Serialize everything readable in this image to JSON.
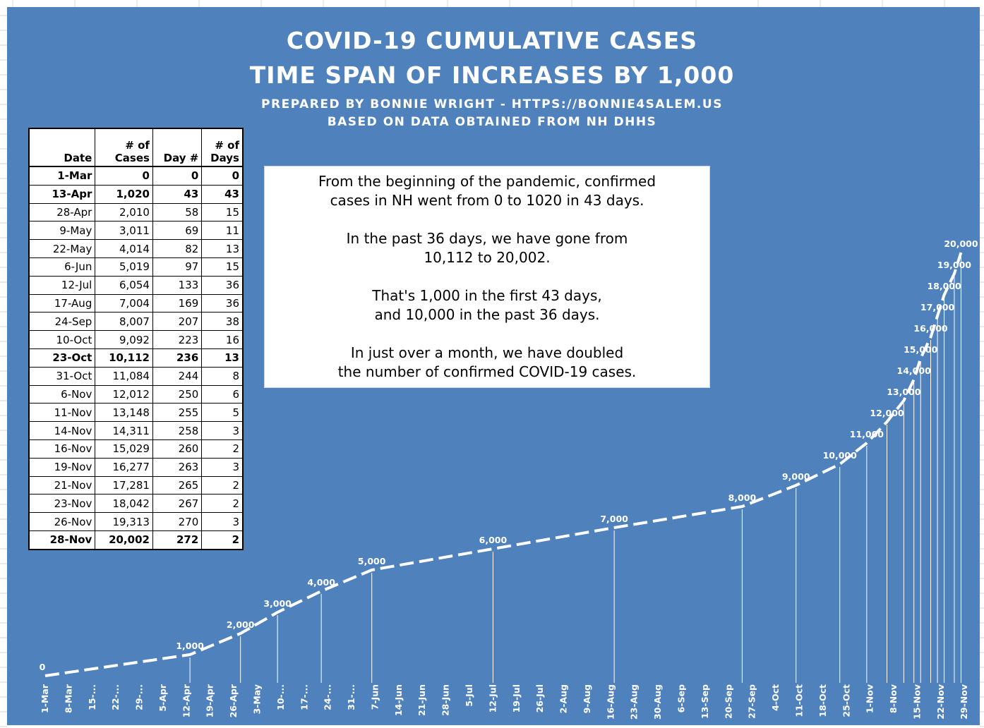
{
  "titles": {
    "line1": "COVID-19 CUMULATIVE CASES",
    "line2": "TIME SPAN OF INCREASES BY 1,000",
    "line3": "PREPARED BY BONNIE WRIGHT - HTTPS://BONNIE4SALEM.US",
    "line4": "BASED ON DATA OBTAINED FROM NH DHHS"
  },
  "table": {
    "headers": [
      {
        "top": "",
        "bottom": "Date"
      },
      {
        "top": "# of",
        "bottom": "Cases"
      },
      {
        "top": "",
        "bottom": "Day #"
      },
      {
        "top": "# of",
        "bottom": "Days"
      }
    ],
    "rows": [
      {
        "date": "1-Mar",
        "cases": "0",
        "day": "0",
        "days": "0",
        "bold": true
      },
      {
        "date": "13-Apr",
        "cases": "1,020",
        "day": "43",
        "days": "43",
        "bold": true
      },
      {
        "date": "28-Apr",
        "cases": "2,010",
        "day": "58",
        "days": "15",
        "bold": false
      },
      {
        "date": "9-May",
        "cases": "3,011",
        "day": "69",
        "days": "11",
        "bold": false
      },
      {
        "date": "22-May",
        "cases": "4,014",
        "day": "82",
        "days": "13",
        "bold": false
      },
      {
        "date": "6-Jun",
        "cases": "5,019",
        "day": "97",
        "days": "15",
        "bold": false
      },
      {
        "date": "12-Jul",
        "cases": "6,054",
        "day": "133",
        "days": "36",
        "bold": false
      },
      {
        "date": "17-Aug",
        "cases": "7,004",
        "day": "169",
        "days": "36",
        "bold": false
      },
      {
        "date": "24-Sep",
        "cases": "8,007",
        "day": "207",
        "days": "38",
        "bold": false
      },
      {
        "date": "10-Oct",
        "cases": "9,092",
        "day": "223",
        "days": "16",
        "bold": false
      },
      {
        "date": "23-Oct",
        "cases": "10,112",
        "day": "236",
        "days": "13",
        "bold": true
      },
      {
        "date": "31-Oct",
        "cases": "11,084",
        "day": "244",
        "days": "8",
        "bold": false
      },
      {
        "date": "6-Nov",
        "cases": "12,012",
        "day": "250",
        "days": "6",
        "bold": false
      },
      {
        "date": "11-Nov",
        "cases": "13,148",
        "day": "255",
        "days": "5",
        "bold": false
      },
      {
        "date": "14-Nov",
        "cases": "14,311",
        "day": "258",
        "days": "3",
        "bold": false
      },
      {
        "date": "16-Nov",
        "cases": "15,029",
        "day": "260",
        "days": "2",
        "bold": false
      },
      {
        "date": "19-Nov",
        "cases": "16,277",
        "day": "263",
        "days": "3",
        "bold": false
      },
      {
        "date": "21-Nov",
        "cases": "17,281",
        "day": "265",
        "days": "2",
        "bold": false
      },
      {
        "date": "23-Nov",
        "cases": "18,042",
        "day": "267",
        "days": "2",
        "bold": false
      },
      {
        "date": "26-Nov",
        "cases": "19,313",
        "day": "270",
        "days": "3",
        "bold": false
      },
      {
        "date": "28-Nov",
        "cases": "20,002",
        "day": "272",
        "days": "2",
        "bold": true
      }
    ]
  },
  "note": {
    "p1a": "From the beginning of the pandemic, confirmed",
    "p1b": "cases in NH went from 0 to 1020 in 43 days.",
    "p2a": "In the past 36 days, we have gone from",
    "p2b": "10,112 to 20,002.",
    "p3a": "That's 1,000 in the first 43 days,",
    "p3b": "and 10,000 in the past 36 days.",
    "p4a": "In just over a month, we have doubled",
    "p4b": "the number of confirmed COVID-19 cases."
  },
  "chart_data": {
    "type": "line",
    "title": "",
    "xlabel": "",
    "ylabel": "",
    "x_unit": "day number since 1-Mar",
    "points": [
      {
        "day": 0,
        "label": "0"
      },
      {
        "day": 43,
        "label": "1,000"
      },
      {
        "day": 58,
        "label": "2,000"
      },
      {
        "day": 69,
        "label": "3,000"
      },
      {
        "day": 82,
        "label": "4,000"
      },
      {
        "day": 97,
        "label": "5,000"
      },
      {
        "day": 133,
        "label": "6,000"
      },
      {
        "day": 169,
        "label": "7,000"
      },
      {
        "day": 207,
        "label": "8,000"
      },
      {
        "day": 223,
        "label": "9,000"
      },
      {
        "day": 236,
        "label": "10,000"
      },
      {
        "day": 244,
        "label": "11,000"
      },
      {
        "day": 250,
        "label": "12,000"
      },
      {
        "day": 255,
        "label": "13,000"
      },
      {
        "day": 258,
        "label": "14,000"
      },
      {
        "day": 260,
        "label": "15,000"
      },
      {
        "day": 263,
        "label": "16,000"
      },
      {
        "day": 265,
        "label": "17,000"
      },
      {
        "day": 267,
        "label": "18,000"
      },
      {
        "day": 270,
        "label": "19,000"
      },
      {
        "day": 272,
        "label": "20,000"
      }
    ],
    "y_values": [
      0,
      1000,
      2000,
      3000,
      4000,
      5000,
      6000,
      7000,
      8000,
      9000,
      10000,
      11000,
      12000,
      13000,
      14000,
      15000,
      16000,
      17000,
      18000,
      19000,
      20000
    ],
    "ylim": [
      0,
      20000
    ],
    "xlim": [
      0,
      273
    ],
    "x_tick_labels": [
      "1-Mar",
      "8-Mar",
      "15-...",
      "22-...",
      "29-...",
      "5-Apr",
      "12-Apr",
      "19-Apr",
      "26-Apr",
      "3-May",
      "10-...",
      "17-...",
      "24-...",
      "31-...",
      "7-Jun",
      "14-Jun",
      "21-Jun",
      "28-Jun",
      "5-Jul",
      "12-Jul",
      "19-Jul",
      "26-Jul",
      "2-Aug",
      "9-Aug",
      "16-Aug",
      "23-Aug",
      "30-Aug",
      "6-Sep",
      "13-Sep",
      "20-Sep",
      "27-Sep",
      "4-Oct",
      "11-Oct",
      "18-Oct",
      "25-Oct",
      "1-Nov",
      "8-Nov",
      "15-Nov",
      "22-Nov",
      "29-Nov"
    ],
    "x_tick_step_days": 7,
    "grid": false,
    "line_color": "#ffffff",
    "background_color": "#4f81bd",
    "data_labels": true
  }
}
